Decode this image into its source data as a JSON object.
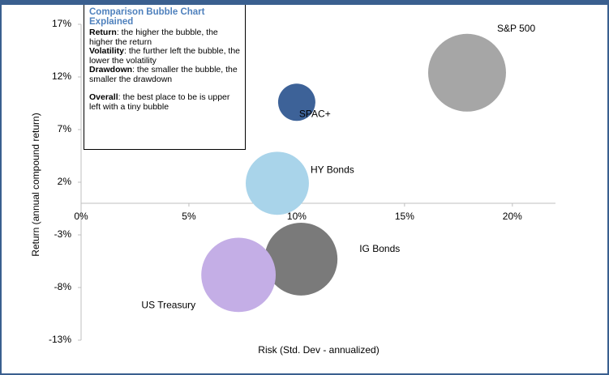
{
  "chart_data": {
    "type": "bubble",
    "xlabel": "Risk (Std. Dev - annualized)",
    "ylabel": "Return (annual compound return)",
    "xlim": [
      0,
      22
    ],
    "ylim": [
      -13,
      17
    ],
    "xticks": [
      {
        "value": 0,
        "label": "0%"
      },
      {
        "value": 5,
        "label": "5%"
      },
      {
        "value": 10,
        "label": "10%"
      },
      {
        "value": 15,
        "label": "15%"
      },
      {
        "value": 20,
        "label": "20%"
      }
    ],
    "yticks": [
      {
        "value": 17,
        "label": "17%"
      },
      {
        "value": 12,
        "label": "12%"
      },
      {
        "value": 7,
        "label": "7%"
      },
      {
        "value": 2,
        "label": "2%"
      },
      {
        "value": -3,
        "label": "-3%"
      },
      {
        "value": -8,
        "label": "-8%"
      },
      {
        "value": -13,
        "label": "-13%"
      }
    ],
    "grid": false,
    "series": [
      {
        "name": "S&P 500",
        "color": "#a6a6a6",
        "x": 17.9,
        "y": 12.4,
        "size": 34
      },
      {
        "name": "SPAC+",
        "color": "#3d6298",
        "x": 10.0,
        "y": 9.6,
        "size": 7.8
      },
      {
        "name": "HY Bonds",
        "color": "#a9d4ea",
        "x": 9.1,
        "y": 1.9,
        "size": 22.4
      },
      {
        "name": "IG Bonds",
        "color": "#7a7a7a",
        "x": 10.2,
        "y": -5.3,
        "size": 29.8
      },
      {
        "name": "US Treasury",
        "color": "#c4aee6",
        "x": 7.3,
        "y": -6.8,
        "size": 31.1
      }
    ],
    "explainer": {
      "title": "Comparison Bubble Chart Explained",
      "items": [
        {
          "term": "Return",
          "text": ": the higher the bubble, the higher the return"
        },
        {
          "term": "Volatility",
          "text": ": the further left the bubble, the lower the volatility"
        },
        {
          "term": "Drawdown",
          "text": ": the smaller the bubble, the smaller the drawdown"
        },
        {
          "term": "Overall",
          "text": ": the best place to be is upper left with a tiny bubble"
        }
      ]
    }
  }
}
